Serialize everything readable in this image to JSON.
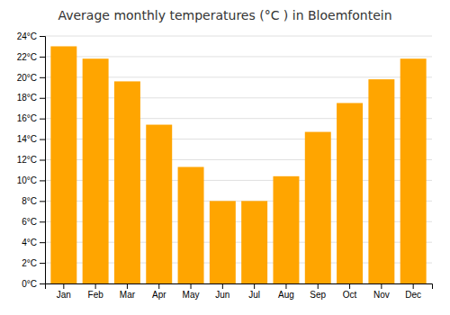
{
  "chart_data": {
    "type": "bar",
    "title": "Average monthly temperatures (°C ) in Bloemfontein",
    "categories": [
      "Jan",
      "Feb",
      "Mar",
      "Apr",
      "May",
      "Jun",
      "Jul",
      "Aug",
      "Sep",
      "Oct",
      "Nov",
      "Dec"
    ],
    "values": [
      23.0,
      21.8,
      19.6,
      15.4,
      11.3,
      8.0,
      8.0,
      10.4,
      14.7,
      17.5,
      19.8,
      21.8
    ],
    "color": "#FFA500",
    "ylim": [
      0,
      24
    ],
    "yticks": [
      {
        "value": 0,
        "label": "0°C"
      },
      {
        "value": 2,
        "label": "2°C"
      },
      {
        "value": 4,
        "label": "4°C"
      },
      {
        "value": 6,
        "label": "6°C"
      },
      {
        "value": 8,
        "label": "8°C"
      },
      {
        "value": 10,
        "label": "10°C"
      },
      {
        "value": 12,
        "label": "12°C"
      },
      {
        "value": 14,
        "label": "14°C"
      },
      {
        "value": 16,
        "label": "16°C"
      },
      {
        "value": 18,
        "label": "18°C"
      },
      {
        "value": 20,
        "label": "20°C"
      },
      {
        "value": 22,
        "label": "22°C"
      },
      {
        "value": 24,
        "label": "24°C"
      }
    ],
    "grid": true
  }
}
